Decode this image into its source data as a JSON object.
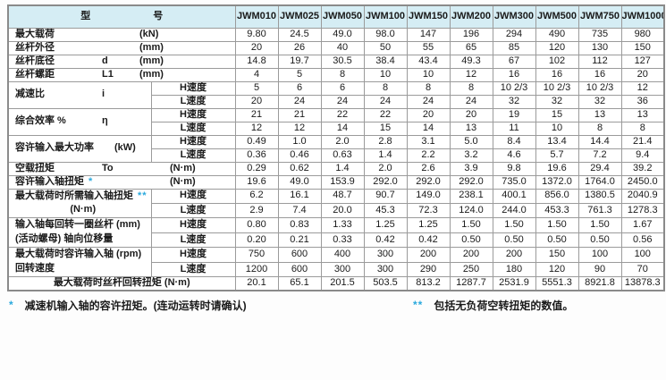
{
  "colors": {
    "header_bg": "#d5edf4",
    "mark_blue": "#2aa9dd",
    "border": "#9b9b9b",
    "text": "#1a1a1a"
  },
  "header": {
    "title_left": "型",
    "title_right": "号"
  },
  "speed_labels": {
    "h": "H速度",
    "l": "L速度"
  },
  "models": [
    "JWM010",
    "JWM025",
    "JWM050",
    "JWM100",
    "JWM150",
    "JWM200",
    "JWM300",
    "JWM500",
    "JWM750",
    "JWM1000"
  ],
  "rows": [
    {
      "name": "max-load",
      "type": "plain",
      "label": "最大载荷",
      "symbol": "",
      "unit": "(kN)",
      "values": [
        "9.80",
        "24.5",
        "49.0",
        "98.0",
        "147",
        "196",
        "294",
        "490",
        "735",
        "980"
      ]
    },
    {
      "name": "screw-outer-dia",
      "type": "plain",
      "label": "丝杆外径",
      "symbol": "",
      "unit": "(mm)",
      "values": [
        "20",
        "26",
        "40",
        "50",
        "55",
        "65",
        "85",
        "120",
        "130",
        "150"
      ]
    },
    {
      "name": "screw-root-dia",
      "type": "plain",
      "label": "丝杆底径",
      "symbol": "d",
      "unit": "(mm)",
      "values": [
        "14.8",
        "19.7",
        "30.5",
        "38.4",
        "43.4",
        "49.3",
        "67",
        "102",
        "112",
        "127"
      ]
    },
    {
      "name": "screw-lead",
      "type": "plain",
      "label": "丝杆螺距",
      "symbol": "L1",
      "unit": "(mm)",
      "values": [
        "4",
        "5",
        "8",
        "10",
        "10",
        "12",
        "16",
        "16",
        "16",
        "20"
      ]
    },
    {
      "name": "reduction-ratio",
      "type": "split",
      "label": "减速比",
      "symbol": "i",
      "unit": "",
      "h_values": [
        "5",
        "6",
        "6",
        "8",
        "8",
        "8",
        "10 2/3",
        "10 2/3",
        "10 2/3",
        "12"
      ],
      "l_values": [
        "20",
        "24",
        "24",
        "24",
        "24",
        "24",
        "32",
        "32",
        "32",
        "36"
      ]
    },
    {
      "name": "overall-efficiency",
      "type": "split",
      "label": "综合效率 %",
      "symbol": "η",
      "unit": "",
      "h_values": [
        "21",
        "21",
        "22",
        "22",
        "20",
        "20",
        "19",
        "15",
        "13",
        "13"
      ],
      "l_values": [
        "12",
        "12",
        "14",
        "15",
        "14",
        "13",
        "11",
        "10",
        "8",
        "8"
      ]
    },
    {
      "name": "allow-max-input-power",
      "type": "split",
      "label": "容许输入最大功率",
      "symbol": "",
      "unit": "(kW)",
      "h_values": [
        "0.49",
        "1.0",
        "2.0",
        "2.8",
        "3.1",
        "5.0",
        "8.4",
        "13.4",
        "14.4",
        "21.4"
      ],
      "l_values": [
        "0.36",
        "0.46",
        "0.63",
        "1.4",
        "2.2",
        "3.2",
        "4.6",
        "5.7",
        "7.2",
        "9.4"
      ]
    },
    {
      "name": "no-load-torque",
      "type": "plain",
      "label": "空载扭矩",
      "symbol": "To",
      "unit": "(N·m)",
      "values": [
        "0.29",
        "0.62",
        "1.4",
        "2.0",
        "2.6",
        "3.9",
        "9.8",
        "19.6",
        "29.4",
        "39.2"
      ]
    },
    {
      "name": "allow-input-shaft-torque",
      "type": "plain",
      "label": "容许输入轴扭矩",
      "mark": "*",
      "unit": "(N·m)",
      "values": [
        "19.6",
        "49.0",
        "153.9",
        "292.0",
        "292.0",
        "292.0",
        "735.0",
        "1372.0",
        "1764.0",
        "2450.0"
      ]
    },
    {
      "name": "required-input-shaft-torque",
      "type": "split",
      "label": "最大载荷时所需输入轴扭矩",
      "mark": "**",
      "label2": "(N·m)",
      "h_values": [
        "6.2",
        "16.1",
        "48.7",
        "90.7",
        "149.0",
        "238.1",
        "400.1",
        "856.0",
        "1380.5",
        "2040.9"
      ],
      "l_values": [
        "2.9",
        "7.4",
        "20.0",
        "45.3",
        "72.3",
        "124.0",
        "244.0",
        "453.3",
        "761.3",
        "1278.3"
      ]
    },
    {
      "name": "screw-travel-per-rev",
      "type": "split",
      "label": "输入轴每回转一圈丝杆 (mm)",
      "label2": "(活动螺母) 轴向位移量",
      "h_values": [
        "0.80",
        "0.83",
        "1.33",
        "1.25",
        "1.25",
        "1.50",
        "1.50",
        "1.50",
        "1.50",
        "1.67"
      ],
      "l_values": [
        "0.20",
        "0.21",
        "0.33",
        "0.42",
        "0.42",
        "0.50",
        "0.50",
        "0.50",
        "0.50",
        "0.56"
      ]
    },
    {
      "name": "allow-input-speed",
      "type": "split",
      "label": "最大载荷时容许输入轴 (rpm)",
      "label2": "回转速度",
      "h_values": [
        "750",
        "600",
        "400",
        "300",
        "200",
        "200",
        "200",
        "150",
        "100",
        "100"
      ],
      "l_values": [
        "1200",
        "600",
        "300",
        "300",
        "290",
        "250",
        "180",
        "120",
        "90",
        "70"
      ]
    },
    {
      "name": "screw-rotation-torque",
      "type": "merged",
      "label": "最大载荷时丝杆回转扭矩 (N·m)",
      "values": [
        "20.1",
        "65.1",
        "201.5",
        "503.5",
        "813.2",
        "1287.7",
        "2531.9",
        "5551.3",
        "8921.8",
        "13878.3"
      ]
    }
  ],
  "footnotes": [
    {
      "mark": "*",
      "text": "减速机输入轴的容许扭矩。(连动运转时请确认)"
    },
    {
      "mark": "**",
      "text": "包括无负荷空转扭矩的数值。"
    }
  ]
}
